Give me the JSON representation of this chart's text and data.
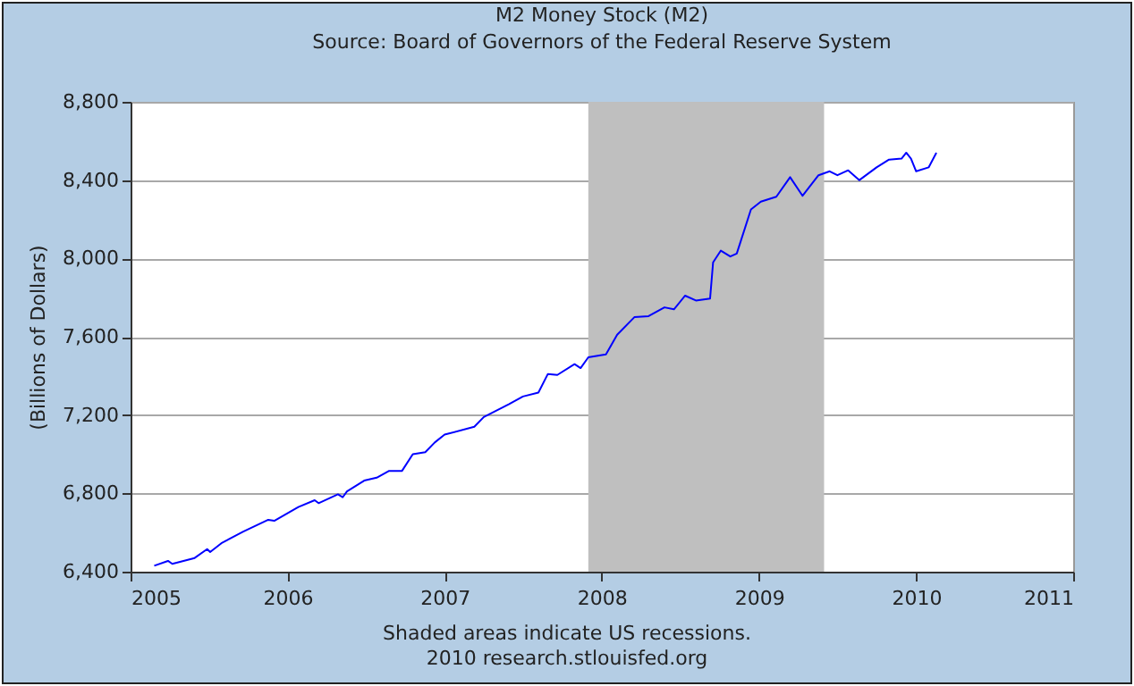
{
  "chart_data": {
    "type": "line",
    "title": "M2 Money Stock (M2)",
    "subtitle": "Source: Board of Governors of the Federal Reserve System",
    "ylabel": "(Billions of Dollars)",
    "annotations": [
      "Shaded areas indicate US recessions.",
      "2010 research.stlouisfed.org"
    ],
    "x": [
      "2005-02-25",
      "2005-03-29",
      "2005-04-08",
      "2005-05-30",
      "2005-06-28",
      "2005-07-05",
      "2005-07-31",
      "2005-09-20",
      "2005-11-17",
      "2005-12-01",
      "2006-01-26",
      "2006-03-05",
      "2006-03-14",
      "2006-04-28",
      "2006-05-09",
      "2006-05-19",
      "2006-06-28",
      "2006-07-27",
      "2006-08-25",
      "2006-09-24",
      "2006-10-19",
      "2006-11-17",
      "2006-12-09",
      "2007-01-01",
      "2007-03-11",
      "2007-04-02",
      "2007-05-30",
      "2007-07-02",
      "2007-08-07",
      "2007-08-29",
      "2007-09-20",
      "2007-10-30",
      "2007-11-13",
      "2007-12-01",
      "2008-01-11",
      "2008-02-06",
      "2008-03-17",
      "2008-04-19",
      "2008-05-26",
      "2008-06-17",
      "2008-07-13",
      "2008-08-07",
      "2008-09-09",
      "2008-09-16",
      "2008-10-04",
      "2008-10-26",
      "2008-11-10",
      "2008-12-13",
      "2009-01-05",
      "2009-02-10",
      "2009-03-14",
      "2009-04-12",
      "2009-05-19",
      "2009-06-14",
      "2009-07-02",
      "2009-07-27",
      "2009-08-22",
      "2009-10-01",
      "2009-10-30",
      "2009-11-28",
      "2009-12-09",
      "2009-12-20",
      "2010-01-01",
      "2010-01-30",
      "2010-02-17"
    ],
    "series": [
      {
        "color": "#0000ff",
        "values": [
          6430,
          6455,
          6440,
          6470,
          6515,
          6500,
          6545,
          6605,
          6665,
          6660,
          6730,
          6765,
          6750,
          6795,
          6780,
          6810,
          6865,
          6880,
          6915,
          6915,
          7000,
          7010,
          7060,
          7100,
          7140,
          7190,
          7255,
          7295,
          7315,
          7410,
          7405,
          7460,
          7440,
          7495,
          7510,
          7610,
          7700,
          7705,
          7750,
          7740,
          7810,
          7785,
          7795,
          7980,
          8040,
          8010,
          8025,
          8250,
          8290,
          8315,
          8415,
          8320,
          8425,
          8445,
          8425,
          8450,
          8400,
          8465,
          8505,
          8510,
          8540,
          8510,
          8445,
          8465,
          8540
        ]
      }
    ],
    "xlim": [
      "2005",
      "2011"
    ],
    "xticks": [
      "2005",
      "2006",
      "2007",
      "2008",
      "2009",
      "2010",
      "2011"
    ],
    "ylim": [
      6400,
      8800
    ],
    "yticks": [
      {
        "value": 6400,
        "label": "6,400"
      },
      {
        "value": 6800,
        "label": "6,800"
      },
      {
        "value": 7200,
        "label": "7,200"
      },
      {
        "value": 7600,
        "label": "7,600"
      },
      {
        "value": 8000,
        "label": "8,000"
      },
      {
        "value": 8400,
        "label": "8,400"
      },
      {
        "value": 8800,
        "label": "8,800"
      }
    ],
    "bands": [
      {
        "axis": "x",
        "from": "2007-12",
        "to": "2009-06",
        "color": "#bfbfbf"
      }
    ],
    "grid": "y"
  }
}
